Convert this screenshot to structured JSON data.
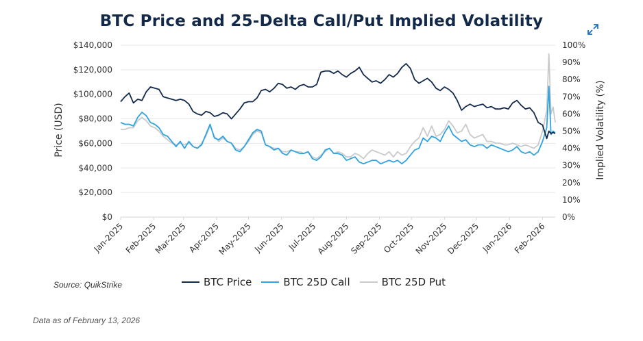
{
  "title": "BTC Price and 25-Delta Call/Put Implied Volatility",
  "source": "Source: QuikStrike",
  "as_of": "Data as of February 13, 2026",
  "icons": {
    "expand": "expand-arrows-icon"
  },
  "colors": {
    "title": "#12294a",
    "btc_price": "#13294b",
    "call": "#2ea3e0",
    "put": "#c8cacc",
    "expand_icon": "#1a73c8"
  },
  "chart_data": {
    "type": "line",
    "title": "BTC Price and 25-Delta Call/Put Implied Volatility",
    "xlabel": "",
    "ylabel": "Price (USD)",
    "y2label": "Implied Volatility (%)",
    "ylim": [
      0,
      140000
    ],
    "y2lim": [
      0,
      100
    ],
    "yticks": [
      "$0",
      "$20,000",
      "$40,000",
      "$60,000",
      "$80,000",
      "$100,000",
      "$120,000",
      "$140,000"
    ],
    "y2ticks": [
      "0%",
      "10%",
      "20%",
      "30%",
      "40%",
      "50%",
      "60%",
      "70%",
      "80%",
      "90%",
      "100%"
    ],
    "xticks": [
      "Jan-2025",
      "Feb-2025",
      "Mar-2025",
      "Apr-2025",
      "May-2025",
      "Jun-2025",
      "Jul-2025",
      "Aug-2025",
      "Sep-2025",
      "Oct-2025",
      "Nov-2025",
      "Dec-2025",
      "Jan-2026",
      "Feb-2026"
    ],
    "grid": true,
    "legend_position": "bottom",
    "x_days": [
      0,
      4,
      8,
      12,
      16,
      20,
      24,
      28,
      32,
      36,
      40,
      44,
      48,
      52,
      56,
      60,
      64,
      68,
      72,
      76,
      80,
      84,
      88,
      92,
      96,
      100,
      104,
      108,
      112,
      116,
      120,
      124,
      128,
      132,
      136,
      140,
      144,
      148,
      152,
      156,
      160,
      164,
      168,
      172,
      176,
      180,
      184,
      188,
      192,
      196,
      200,
      204,
      208,
      212,
      216,
      220,
      224,
      228,
      232,
      236,
      240,
      244,
      248,
      252,
      256,
      260,
      264,
      268,
      272,
      276,
      280,
      284,
      288,
      292,
      296,
      300,
      304,
      308,
      312,
      316,
      320,
      324,
      328,
      332,
      336,
      340,
      344,
      348,
      352,
      356,
      360,
      364,
      368,
      372,
      376,
      380,
      384,
      388,
      392,
      396,
      400,
      402,
      404,
      406,
      408
    ],
    "series": [
      {
        "name": "BTC Price",
        "axis": "left",
        "values": [
          94000,
          98000,
          101000,
          93000,
          96000,
          95000,
          102000,
          106000,
          105000,
          104000,
          98000,
          97000,
          96000,
          95000,
          96000,
          95000,
          92000,
          86000,
          84000,
          83000,
          86000,
          85000,
          82000,
          83000,
          85000,
          84000,
          80000,
          84000,
          88000,
          93000,
          94000,
          94000,
          97000,
          103000,
          104000,
          102000,
          105000,
          109000,
          108000,
          105000,
          106000,
          104000,
          107000,
          108000,
          106000,
          106000,
          108000,
          118000,
          119000,
          119000,
          117000,
          119000,
          116000,
          114000,
          117000,
          119000,
          122000,
          116000,
          113000,
          110000,
          111000,
          109000,
          112000,
          116000,
          114000,
          117000,
          122000,
          125000,
          121000,
          112000,
          109000,
          111000,
          113000,
          110000,
          105000,
          103000,
          106000,
          104000,
          101000,
          95000,
          87000,
          90000,
          92000,
          90000,
          91000,
          92000,
          89000,
          90000,
          88000,
          88000,
          89000,
          88000,
          93000,
          95000,
          91000,
          88000,
          89000,
          85000,
          77000,
          75000,
          64000,
          70000,
          68000,
          69000,
          68000
        ]
      },
      {
        "name": "BTC 25D Call",
        "axis": "right",
        "values": [
          55,
          54,
          54,
          53,
          58,
          61,
          59,
          55,
          54,
          52,
          48,
          47,
          44,
          41,
          44,
          40,
          44,
          41,
          40,
          42,
          48,
          54,
          46,
          45,
          47,
          44,
          43,
          39,
          38,
          41,
          45,
          49,
          51,
          50,
          42,
          41,
          39,
          40,
          37,
          36,
          39,
          38,
          37,
          37,
          38,
          34,
          33,
          35,
          39,
          40,
          37,
          37,
          36,
          33,
          34,
          35,
          32,
          31,
          32,
          33,
          33,
          31,
          32,
          33,
          32,
          33,
          31,
          33,
          36,
          39,
          40,
          46,
          44,
          47,
          46,
          44,
          49,
          53,
          48,
          46,
          44,
          45,
          42,
          41,
          42,
          42,
          40,
          42,
          41,
          40,
          39,
          38,
          39,
          41,
          38,
          37,
          38,
          36,
          38,
          44,
          52,
          76,
          48,
          50,
          49
        ]
      },
      {
        "name": "BTC 25D Put",
        "axis": "right",
        "values": [
          51,
          51,
          52,
          52,
          56,
          58,
          56,
          53,
          52,
          50,
          47,
          45,
          43,
          42,
          43,
          42,
          43,
          41,
          40,
          43,
          47,
          53,
          47,
          44,
          46,
          44,
          43,
          40,
          39,
          41,
          44,
          48,
          50,
          49,
          42,
          41,
          40,
          40,
          38,
          38,
          39,
          38,
          38,
          37,
          38,
          35,
          34,
          36,
          38,
          40,
          37,
          38,
          37,
          35,
          35,
          37,
          36,
          34,
          37,
          39,
          38,
          37,
          36,
          38,
          35,
          38,
          36,
          37,
          41,
          44,
          46,
          52,
          47,
          53,
          47,
          48,
          51,
          56,
          53,
          49,
          50,
          54,
          48,
          46,
          47,
          48,
          44,
          44,
          43,
          43,
          42,
          42,
          43,
          42,
          41,
          42,
          41,
          40,
          42,
          50,
          62,
          95,
          60,
          64,
          55
        ]
      }
    ]
  },
  "legend": [
    {
      "label": "BTC Price"
    },
    {
      "label": "BTC 25D Call"
    },
    {
      "label": "BTC 25D Put"
    }
  ]
}
